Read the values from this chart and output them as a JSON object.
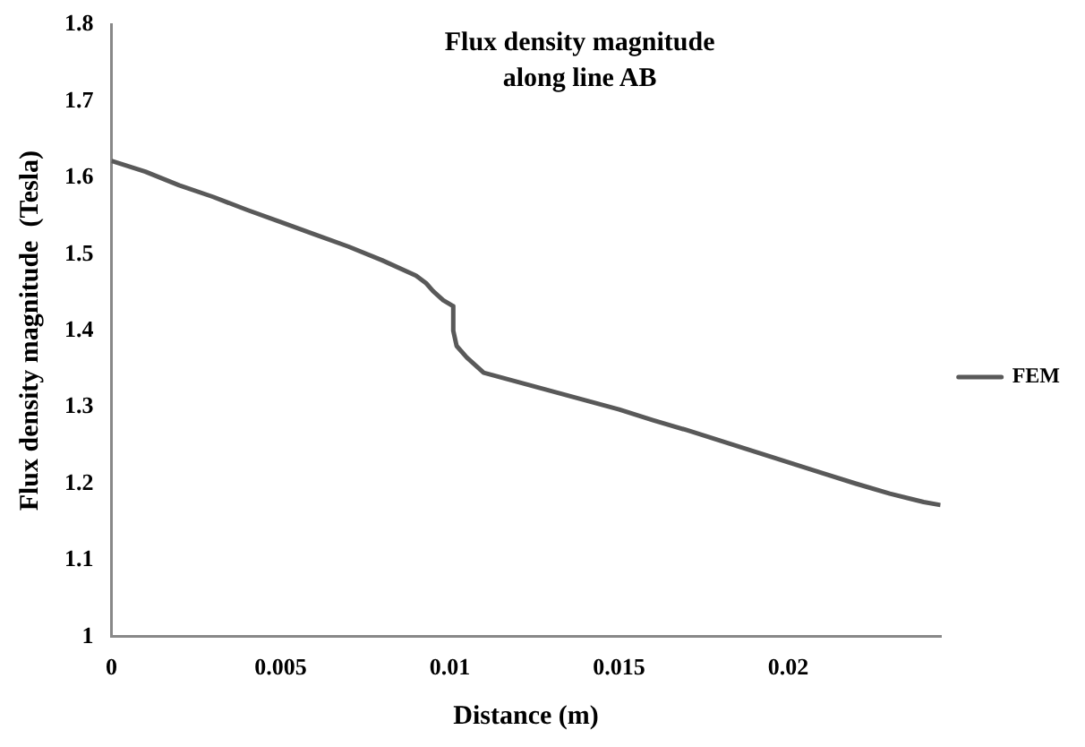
{
  "chart_data": {
    "type": "line",
    "title": [
      "Flux density magnitude",
      "along line AB"
    ],
    "xlabel": "Distance (m)",
    "ylabel": "Flux density magnitude  (Tesla)",
    "x": [
      0,
      0.001,
      0.002,
      0.003,
      0.004,
      0.005,
      0.006,
      0.007,
      0.008,
      0.009,
      0.0093,
      0.0095,
      0.0098,
      0.0101,
      0.0101,
      0.0102,
      0.0105,
      0.011,
      0.012,
      0.013,
      0.014,
      0.015,
      0.016,
      0.017,
      0.018,
      0.019,
      0.02,
      0.021,
      0.022,
      0.023,
      0.024,
      0.0245
    ],
    "series": [
      {
        "name": "FEM",
        "color": "#595959",
        "values": [
          1.622,
          1.608,
          1.59,
          1.575,
          1.558,
          1.542,
          1.526,
          1.51,
          1.492,
          1.472,
          1.462,
          1.452,
          1.44,
          1.432,
          1.4,
          1.38,
          1.365,
          1.345,
          1.333,
          1.321,
          1.309,
          1.297,
          1.283,
          1.27,
          1.256,
          1.242,
          1.228,
          1.214,
          1.2,
          1.187,
          1.176,
          1.172
        ]
      }
    ],
    "xlim": [
      0,
      0.0245
    ],
    "xticks": [
      0,
      0.005,
      0.01,
      0.015,
      0.02
    ],
    "ylim": [
      1,
      1.8
    ],
    "yticks": [
      1,
      1.1,
      1.2,
      1.3,
      1.4,
      1.5,
      1.6,
      1.7,
      1.8
    ],
    "grid": false,
    "legend": "right",
    "marker": "none",
    "line_style": "solid"
  }
}
